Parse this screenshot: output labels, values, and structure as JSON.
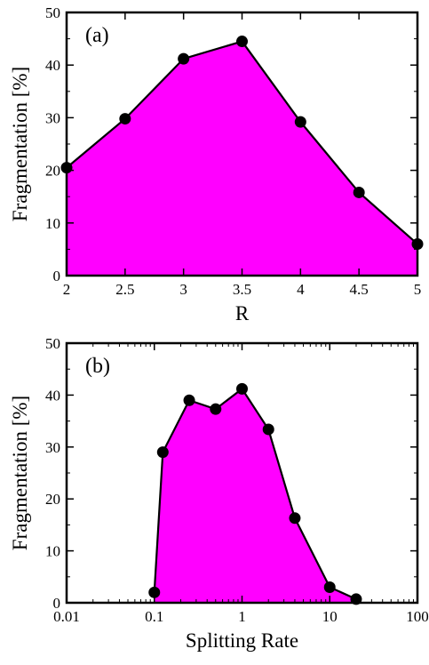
{
  "chart_data": [
    {
      "type": "area",
      "panel_label": "(a)",
      "xlabel": "R",
      "ylabel": "Fragmentation [%]",
      "x_scale": "linear",
      "xlim": [
        2,
        5
      ],
      "ylim": [
        0,
        50
      ],
      "x_ticks": [
        "2",
        "2.5",
        "3",
        "3.5",
        "4",
        "4.5",
        "5"
      ],
      "y_ticks": [
        "0",
        "10",
        "20",
        "30",
        "40",
        "50"
      ],
      "grid": false,
      "fill_color": "#ff00ff",
      "series": [
        {
          "x": [
            2,
            2.5,
            3,
            3.5,
            4,
            4.5,
            5
          ],
          "y": [
            20.5,
            29.8,
            41.2,
            44.5,
            29.2,
            15.8,
            6.0
          ]
        }
      ]
    },
    {
      "type": "area",
      "panel_label": "(b)",
      "xlabel": "Splitting Rate",
      "ylabel": "Fragmentation [%]",
      "x_scale": "log",
      "xlim": [
        0.01,
        100
      ],
      "ylim": [
        0,
        50
      ],
      "x_ticks": [
        "0.01",
        "0.1",
        "1",
        "10",
        "100"
      ],
      "y_ticks": [
        "0",
        "10",
        "20",
        "30",
        "40",
        "50"
      ],
      "grid": false,
      "fill_color": "#ff00ff",
      "series": [
        {
          "x": [
            0.1,
            0.125,
            0.25,
            0.5,
            1,
            2,
            4,
            10,
            20
          ],
          "y": [
            2.0,
            29.0,
            39.0,
            37.3,
            41.2,
            33.4,
            16.3,
            3.0,
            0.7
          ]
        }
      ]
    }
  ]
}
